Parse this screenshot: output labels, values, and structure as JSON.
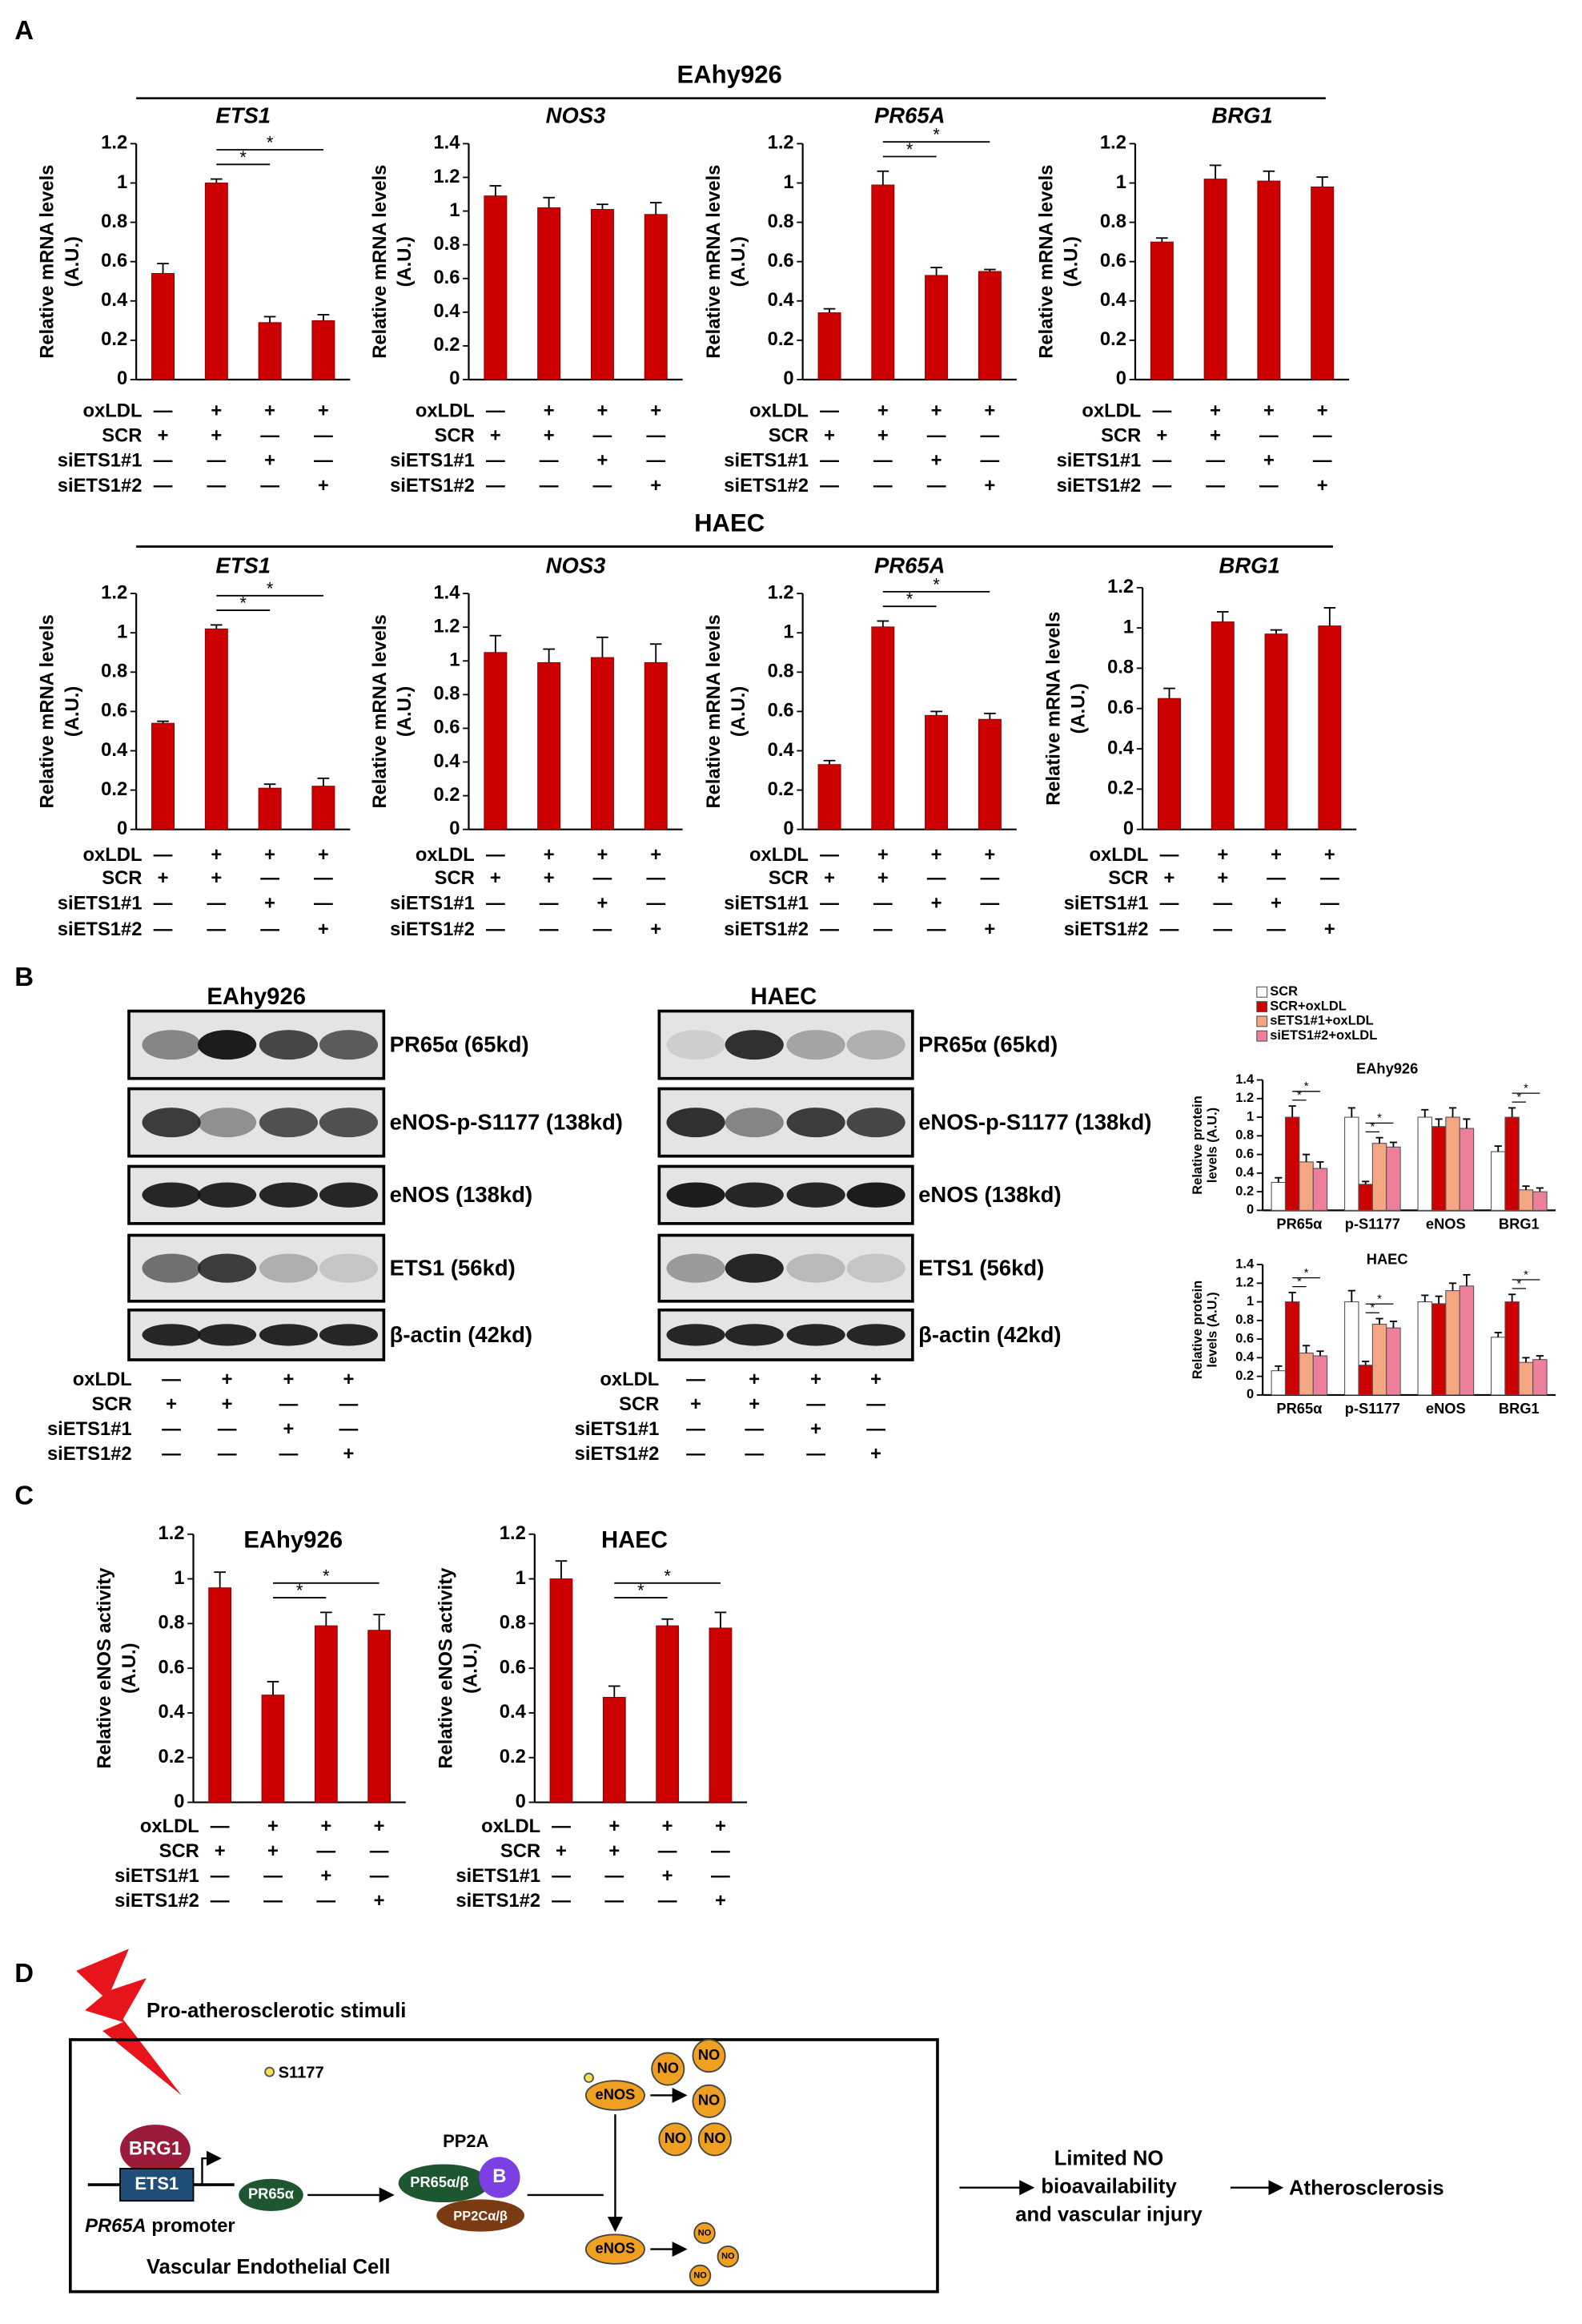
{
  "panel_labels": [
    "A",
    "B",
    "C",
    "D"
  ],
  "group_titles": [
    "EAhy926",
    "HAEC"
  ],
  "conditions": {
    "rows": [
      "oxLDL",
      "SCR",
      "siETS1#1",
      "siETS1#2"
    ],
    "signs": [
      [
        "—",
        "+",
        "+",
        "+"
      ],
      [
        "+",
        "+",
        "—",
        "—"
      ],
      [
        "—",
        "—",
        "+",
        "—"
      ],
      [
        "—",
        "—",
        "—",
        "+"
      ]
    ]
  },
  "chart_data": [
    {
      "type": "bar",
      "title": "ETS1",
      "ylabel": [
        "Relative mRNA levels",
        "(A.U.)"
      ],
      "values": [
        0.54,
        1.0,
        0.29,
        0.3
      ],
      "errors": [
        0.05,
        0.02,
        0.03,
        0.03
      ],
      "color": "#cc0000",
      "ylim": [
        0,
        1.2
      ],
      "yticks": [
        0,
        0.2,
        0.4,
        0.6,
        0.8,
        1,
        1.2
      ],
      "annotations": [
        "*",
        "*"
      ]
    },
    {
      "type": "bar",
      "title": "NOS3",
      "ylabel": [
        "Relative mRNA levels",
        "(A.U.)"
      ],
      "values": [
        1.09,
        1.02,
        1.01,
        0.98
      ],
      "errors": [
        0.06,
        0.06,
        0.03,
        0.07
      ],
      "color": "#cc0000",
      "ylim": [
        0,
        1.4
      ],
      "yticks": [
        0,
        0.2,
        0.4,
        0.6,
        0.8,
        1,
        1.2,
        1.4
      ]
    },
    {
      "type": "bar",
      "title": "PR65A",
      "ylabel": [
        "Relative mRNA levels",
        "(A.U.)"
      ],
      "values": [
        0.34,
        0.99,
        0.53,
        0.55
      ],
      "errors": [
        0.02,
        0.07,
        0.04,
        0.01
      ],
      "color": "#cc0000",
      "ylim": [
        0,
        1.2
      ],
      "yticks": [
        0,
        0.2,
        0.4,
        0.6,
        0.8,
        1,
        1.2
      ],
      "annotations": [
        "*",
        "*"
      ]
    },
    {
      "type": "bar",
      "title": "BRG1",
      "ylabel": [
        "Relative mRNA levels",
        "(A.U.)"
      ],
      "values": [
        0.7,
        1.02,
        1.01,
        0.98
      ],
      "errors": [
        0.02,
        0.07,
        0.05,
        0.05
      ],
      "color": "#cc0000",
      "ylim": [
        0,
        1.2
      ],
      "yticks": [
        0,
        0.2,
        0.4,
        0.6,
        0.8,
        1,
        1.2
      ]
    },
    {
      "type": "bar",
      "title": "ETS1",
      "ylabel": [
        "Relative mRNA levels",
        "(A.U.)"
      ],
      "values": [
        0.54,
        1.02,
        0.21,
        0.22
      ],
      "errors": [
        0.01,
        0.02,
        0.02,
        0.04
      ],
      "color": "#cc0000",
      "ylim": [
        0,
        1.2
      ],
      "yticks": [
        0,
        0.2,
        0.4,
        0.6,
        0.8,
        1,
        1.2
      ],
      "annotations": [
        "*",
        "*"
      ]
    },
    {
      "type": "bar",
      "title": "NOS3",
      "ylabel": [
        "Relative mRNA levels",
        "(A.U.)"
      ],
      "values": [
        1.05,
        0.99,
        1.02,
        0.99
      ],
      "errors": [
        0.1,
        0.08,
        0.12,
        0.11
      ],
      "color": "#cc0000",
      "ylim": [
        0,
        1.4
      ],
      "yticks": [
        0,
        0.2,
        0.4,
        0.6,
        0.8,
        1,
        1.2,
        1.4
      ]
    },
    {
      "type": "bar",
      "title": "PR65A",
      "ylabel": [
        "Relative mRNA levels",
        "(A.U.)"
      ],
      "values": [
        0.33,
        1.03,
        0.58,
        0.56
      ],
      "errors": [
        0.02,
        0.03,
        0.02,
        0.03
      ],
      "color": "#cc0000",
      "ylim": [
        0,
        1.2
      ],
      "yticks": [
        0,
        0.2,
        0.4,
        0.6,
        0.8,
        1,
        1.2
      ],
      "annotations": [
        "*",
        "*"
      ]
    },
    {
      "type": "bar",
      "title": "BRG1",
      "ylabel": [
        "Relative mRNA levels",
        "(A.U.)"
      ],
      "values": [
        0.65,
        1.03,
        0.97,
        1.01
      ],
      "errors": [
        0.05,
        0.05,
        0.02,
        0.09
      ],
      "color": "#cc0000",
      "ylim": [
        0,
        1.2
      ],
      "yticks": [
        0,
        0.2,
        0.4,
        0.6,
        0.8,
        1,
        1.2
      ]
    },
    {
      "type": "grouped_bar",
      "title": "EAhy926",
      "ylabel": [
        "Relative protein",
        "levels (A.U.)"
      ],
      "categories": [
        "PR65α",
        "p-S1177",
        "eNOS",
        "BRG1"
      ],
      "series": [
        {
          "name": "SCR",
          "color": "#ffffff",
          "values": [
            0.3,
            1.0,
            1.0,
            0.63
          ],
          "errors": [
            0.05,
            0.1,
            0.08,
            0.06
          ]
        },
        {
          "name": "SCR+oxLDL",
          "color": "#cc0000",
          "values": [
            1.0,
            0.28,
            0.9,
            1.0
          ],
          "errors": [
            0.12,
            0.03,
            0.08,
            0.1
          ]
        },
        {
          "name": "sETS1#1+oxLDL",
          "color": "#f4a582",
          "values": [
            0.52,
            0.72,
            1.0,
            0.22
          ],
          "errors": [
            0.08,
            0.06,
            0.1,
            0.04
          ]
        },
        {
          "name": "siETS1#2+oxLDL",
          "color": "#ee7f9a",
          "values": [
            0.45,
            0.68,
            0.88,
            0.2
          ],
          "errors": [
            0.07,
            0.05,
            0.1,
            0.04
          ]
        }
      ],
      "ylim": [
        0,
        1.4
      ],
      "yticks": [
        0,
        0.2,
        0.4,
        0.6,
        0.8,
        1,
        1.2,
        1.4
      ],
      "annotations": [
        "*",
        "*",
        "*",
        "*",
        "*",
        "*"
      ]
    },
    {
      "type": "grouped_bar",
      "title": "HAEC",
      "ylabel": [
        "Relative protein",
        "levels (A.U.)"
      ],
      "categories": [
        "PR65α",
        "p-S1177",
        "eNOS",
        "BRG1"
      ],
      "series": [
        {
          "name": "SCR",
          "color": "#ffffff",
          "values": [
            0.26,
            1.0,
            1.0,
            0.62
          ],
          "errors": [
            0.05,
            0.12,
            0.07,
            0.05
          ]
        },
        {
          "name": "SCR+oxLDL",
          "color": "#cc0000",
          "values": [
            1.0,
            0.32,
            0.98,
            1.0
          ],
          "errors": [
            0.1,
            0.04,
            0.08,
            0.08
          ]
        },
        {
          "name": "sETS1#1+oxLDL",
          "color": "#f4a582",
          "values": [
            0.45,
            0.76,
            1.12,
            0.35
          ],
          "errors": [
            0.08,
            0.06,
            0.08,
            0.05
          ]
        },
        {
          "name": "siETS1#2+oxLDL",
          "color": "#ee7f9a",
          "values": [
            0.42,
            0.72,
            1.17,
            0.38
          ],
          "errors": [
            0.05,
            0.07,
            0.12,
            0.04
          ]
        }
      ],
      "ylim": [
        0,
        1.4
      ],
      "yticks": [
        0,
        0.2,
        0.4,
        0.6,
        0.8,
        1,
        1.2,
        1.4
      ],
      "annotations": [
        "*",
        "*",
        "*",
        "*",
        "*",
        "*"
      ]
    },
    {
      "type": "bar",
      "title": "EAhy926",
      "ylabel": [
        "Relative eNOS activity",
        "(A.U.)"
      ],
      "values": [
        0.96,
        0.48,
        0.79,
        0.77
      ],
      "errors": [
        0.07,
        0.06,
        0.06,
        0.07
      ],
      "color": "#cc0000",
      "ylim": [
        0,
        1.2
      ],
      "yticks": [
        0,
        0.2,
        0.4,
        0.6,
        0.8,
        1,
        1.2
      ],
      "annotations": [
        "*",
        "*"
      ]
    },
    {
      "type": "bar",
      "title": "HAEC",
      "ylabel": [
        "Relative eNOS activity",
        "(A.U.)"
      ],
      "values": [
        1.0,
        0.47,
        0.79,
        0.78
      ],
      "errors": [
        0.08,
        0.05,
        0.03,
        0.07
      ],
      "color": "#cc0000",
      "ylim": [
        0,
        1.2
      ],
      "yticks": [
        0,
        0.2,
        0.4,
        0.6,
        0.8,
        1,
        1.2
      ],
      "annotations": [
        "*",
        "*"
      ]
    }
  ],
  "blots": {
    "titles": [
      "EAhy926",
      "HAEC"
    ],
    "labels": [
      "PR65α (65kd)",
      "eNOS-p-S1177 (138kd)",
      "eNOS (138kd)",
      "ETS1 (56kd)",
      "β-actin (42kd)"
    ]
  },
  "diagram": {
    "stimulus": "Pro-atherosclerotic stimuli",
    "site": "S1177",
    "brg1": "BRG1",
    "ets1": "ETS1",
    "promoter_gene": "PR65A",
    "promoter": "promoter",
    "cell": "Vascular Endothelial Cell",
    "pr65a": "PR65α",
    "pp2a": "PP2A",
    "pr65ab": "PR65α/β",
    "b": "B",
    "pp2c": "PP2Cα/β",
    "enos": "eNOS",
    "no": "NO",
    "outcome": [
      "Limited NO",
      "bioavailability",
      "and vascular injury"
    ],
    "end": "Atherosclerosis"
  }
}
